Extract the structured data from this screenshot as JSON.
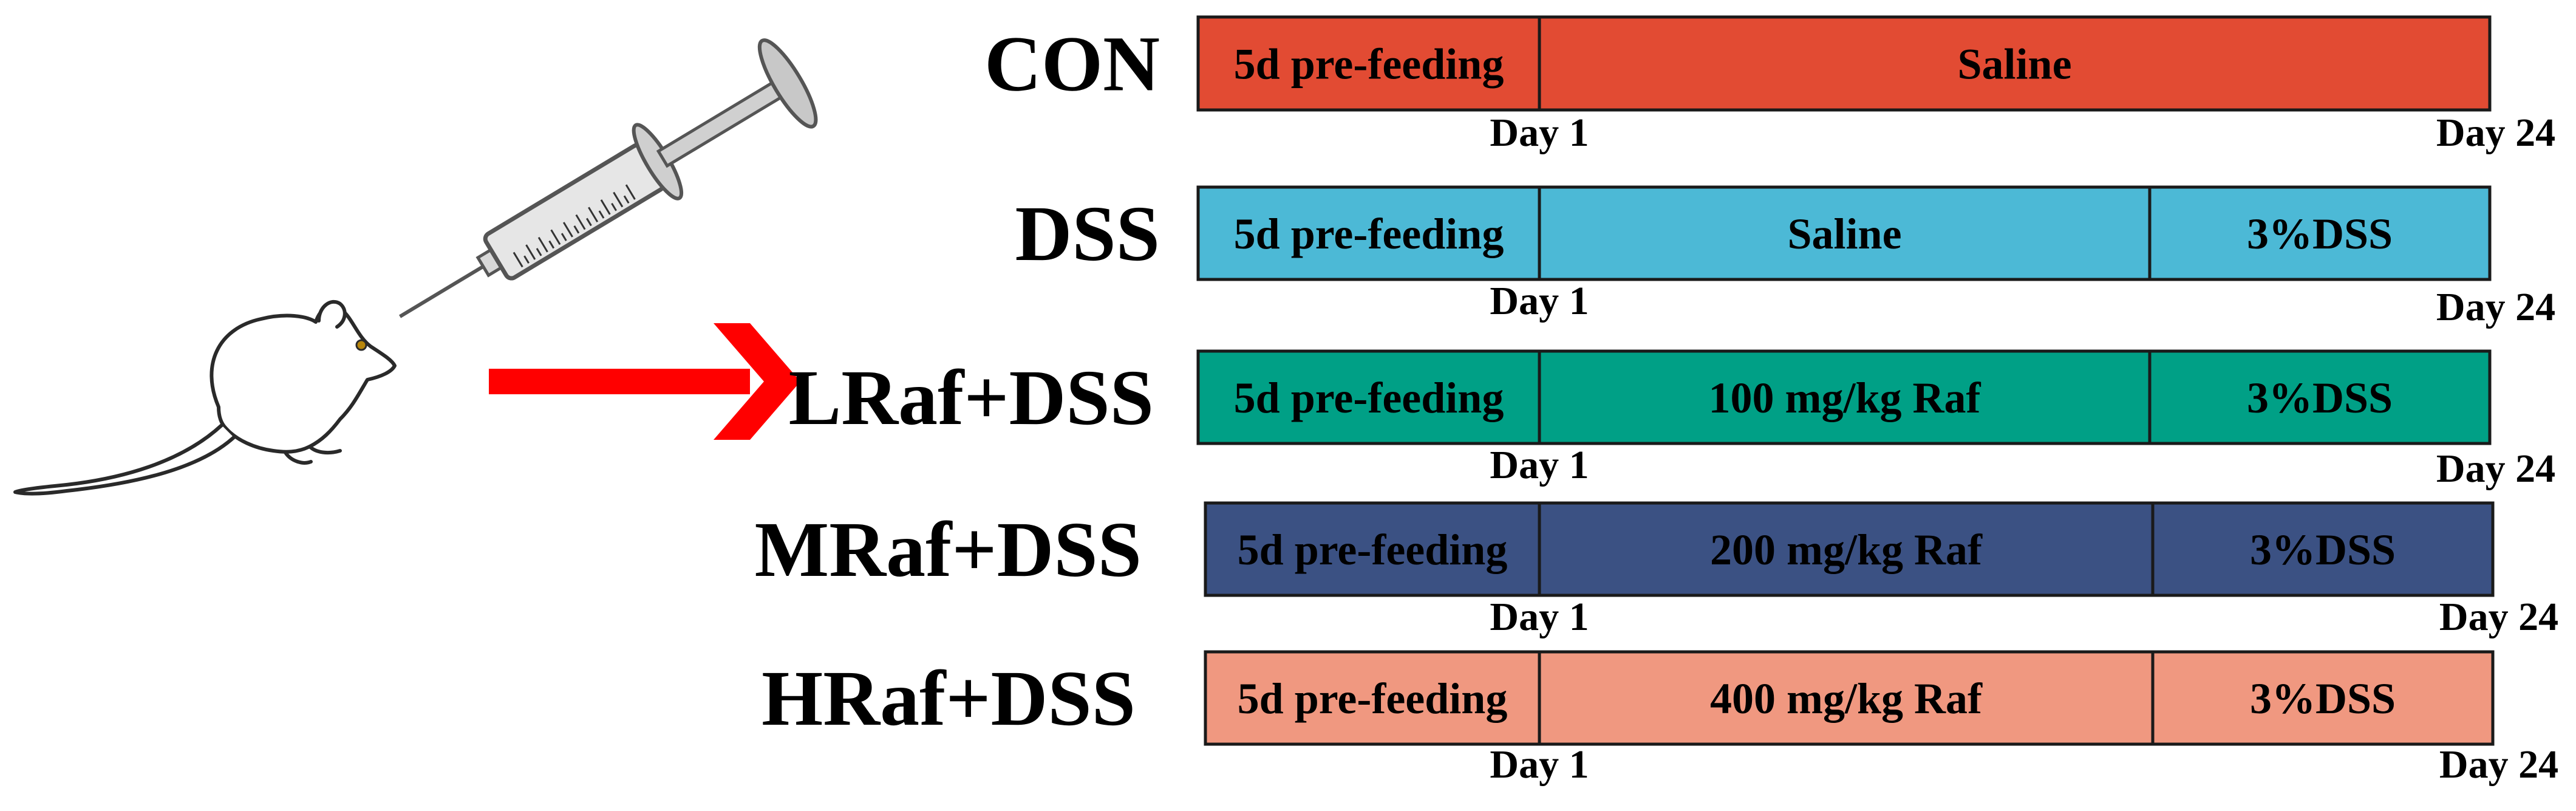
{
  "diagram": {
    "groups": [
      {
        "label": "CON",
        "color": "#e24b33",
        "segments": [
          "5d pre-feeding",
          "Saline"
        ],
        "day_start": "Day 1",
        "day_end": "Day 24"
      },
      {
        "label": "DSS",
        "color": "#4cb9d6",
        "segments": [
          "5d pre-feeding",
          "Saline",
          "3%DSS"
        ],
        "day_start": "Day 1",
        "day_end": "Day 24"
      },
      {
        "label": "LRaf+DSS",
        "color": "#00a086",
        "segments": [
          "5d pre-feeding",
          "100 mg/kg Raf",
          "3%DSS"
        ],
        "day_start": "Day 1",
        "day_end": "Day 24"
      },
      {
        "label": "MRaf+DSS",
        "color": "#3b5183",
        "segments": [
          "5d pre-feeding",
          "200 mg/kg Raf",
          "3%DSS"
        ],
        "day_start": "Day 1",
        "day_end": "Day 24"
      },
      {
        "label": "HRaf+DSS",
        "color": "#f09880",
        "segments": [
          "5d pre-feeding",
          "400 mg/kg Raf",
          "3%DSS"
        ],
        "day_start": "Day 1",
        "day_end": "Day 24"
      }
    ],
    "arrow_color": "#ff0000",
    "icons": [
      "mouse-icon",
      "syringe-icon"
    ]
  }
}
